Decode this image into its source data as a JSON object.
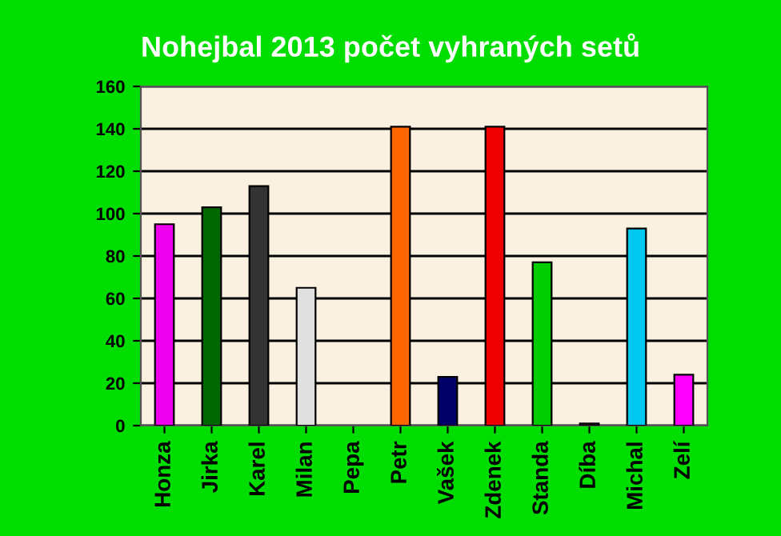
{
  "chart_data": {
    "type": "bar",
    "title": "Nohejbal 2013 počet vyhraných setů",
    "categories": [
      "Honza",
      "Jirka",
      "Karel",
      "Milan",
      "Pepa",
      "Petr",
      "Vašek",
      "Zdenek",
      "Standa",
      "Díba",
      "Michal",
      "Zelí"
    ],
    "values": [
      95,
      103,
      113,
      65,
      0,
      141,
      23,
      141,
      77,
      1,
      93,
      24
    ],
    "colors": [
      "#ee00ee",
      "#006600",
      "#333333",
      "#e0e0e0",
      "#ffffff",
      "#ff6600",
      "#000066",
      "#ee0000",
      "#00cc00",
      "#222222",
      "#00c8f0",
      "#ff00ff"
    ],
    "ylim": [
      0,
      160
    ],
    "yticks": [
      0,
      20,
      40,
      60,
      80,
      100,
      120,
      140,
      160
    ],
    "grid": "y"
  }
}
